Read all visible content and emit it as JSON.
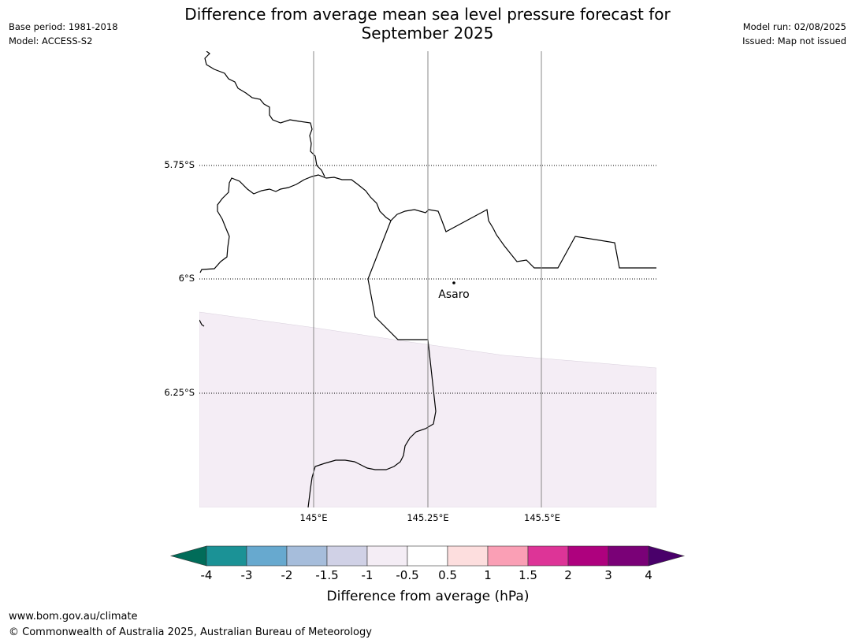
{
  "header": {
    "title_line1": "Difference from average mean sea level pressure forecast for",
    "title_line2": "September 2025",
    "base_period": "Base period: 1981-2018",
    "model": "Model: ACCESS-S2",
    "model_run": "Model run: 02/08/2025",
    "issued": "Issued: Map not issued"
  },
  "map": {
    "lat_labels": [
      "5.75°S",
      "6°S",
      "6.25°S"
    ],
    "lon_labels": [
      "145°E",
      "145.25°E",
      "145.5°E"
    ],
    "places": [
      {
        "name": "Asaro"
      }
    ],
    "fill_colors": {
      "band_-1_-0.5": "#f4edf5"
    },
    "line_colors": {
      "coast": "#000000",
      "meridian": "#888888"
    }
  },
  "colorbar": {
    "title": "Difference from average (hPa)",
    "tick_labels": [
      "-4",
      "-3",
      "-2",
      "-1.5",
      "-1",
      "-0.5",
      "0.5",
      "1",
      "1.5",
      "2",
      "3",
      "4"
    ],
    "colors": [
      "#1b9296",
      "#67a9cf",
      "#a6bddb",
      "#d0d1e6",
      "#f4edf5",
      "#ffffff",
      "#fddede",
      "#fa9fb5",
      "#dd3497",
      "#ae017e",
      "#7a0177"
    ],
    "under_color": "#016c59",
    "over_color": "#49006a"
  },
  "footer": {
    "url": "www.bom.gov.au/climate",
    "copyright": "© Commonwealth of Australia 2025, Australian Bureau of Meteorology"
  }
}
